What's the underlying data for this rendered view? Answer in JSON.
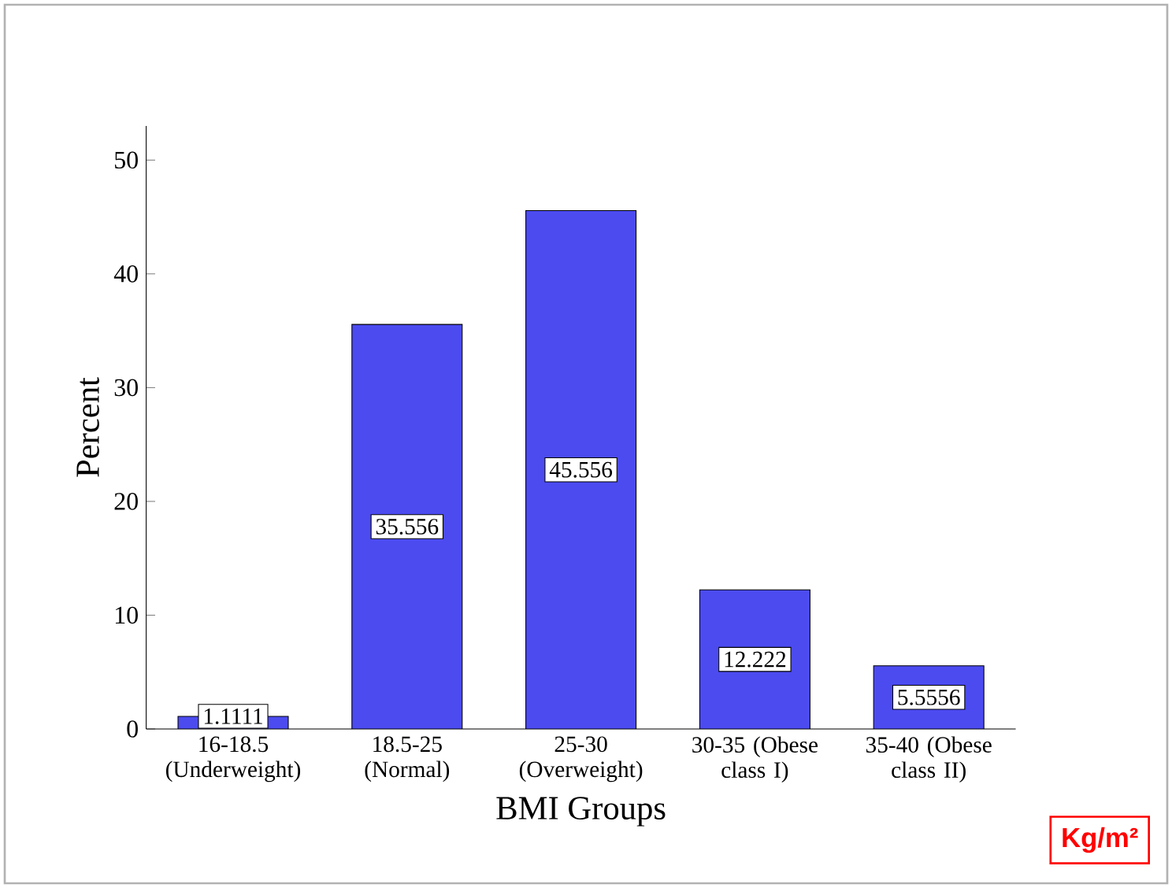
{
  "chart_data": {
    "type": "bar",
    "xlabel": "BMI Groups",
    "ylabel": "Percent",
    "categories": [
      "16-18.5 (Underweight)",
      "18.5-25 (Normal)",
      "25-30 (Overweight)",
      "30-35 (Obese class I)",
      "35-40 (Obese class II)"
    ],
    "values": [
      1.1111,
      35.556,
      45.556,
      12.222,
      5.5556
    ],
    "color": "#4b4bf0",
    "ylim": [
      0,
      53
    ],
    "yticks": [
      0,
      10,
      20,
      30,
      40,
      50
    ],
    "data_labels": true,
    "annotations": [
      "Kg/m²"
    ]
  }
}
